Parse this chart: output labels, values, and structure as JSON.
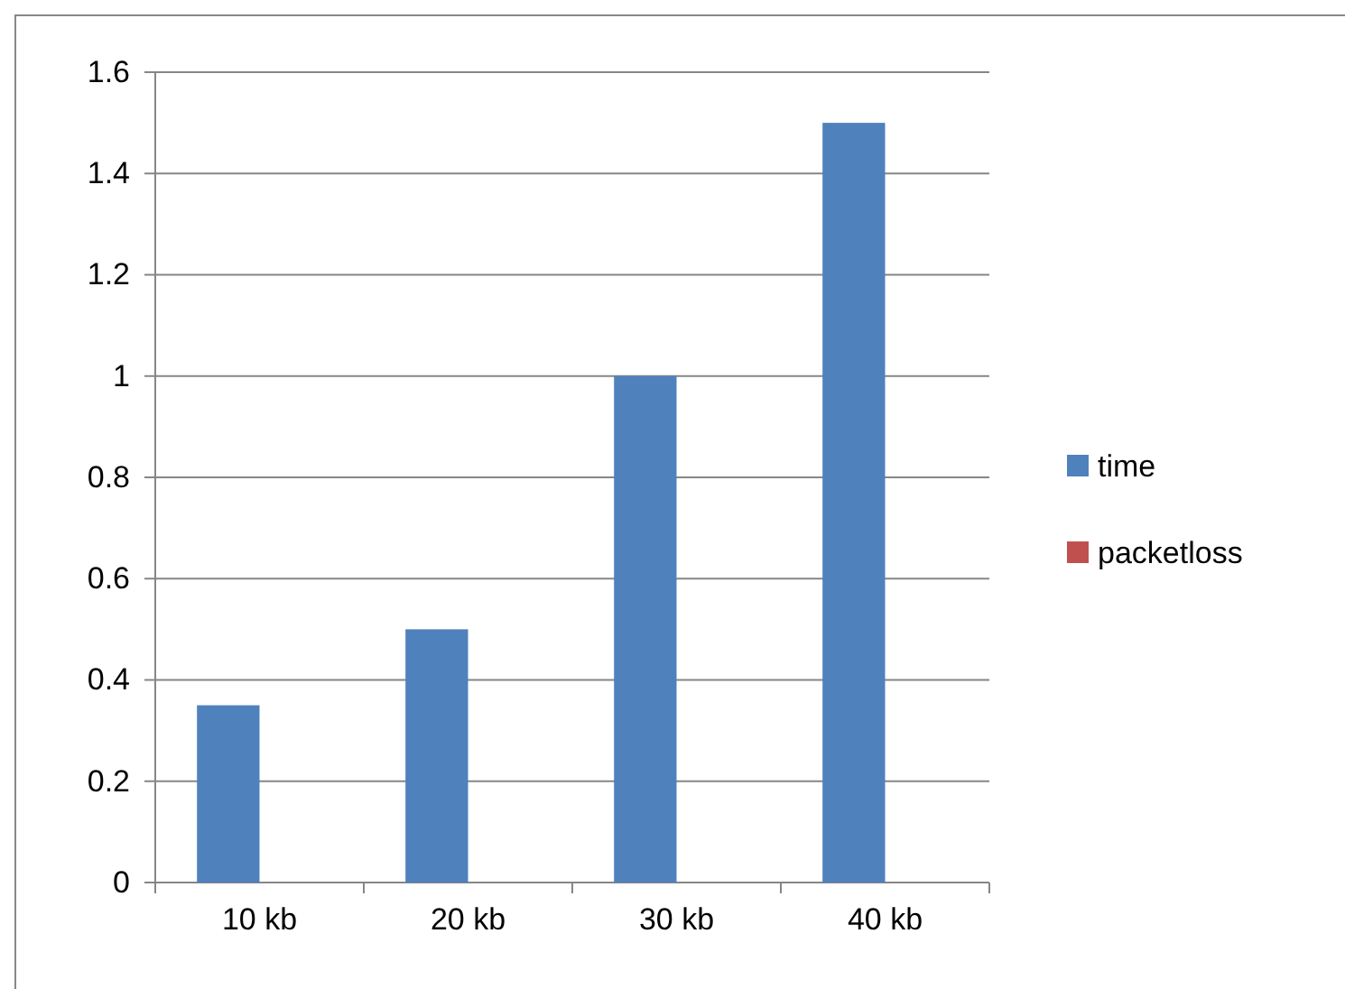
{
  "chart_data": {
    "type": "bar",
    "categories": [
      "10 kb",
      "20 kb",
      "30 kb",
      "40 kb"
    ],
    "series": [
      {
        "name": "time",
        "color": "#4f81bd",
        "values": [
          0.35,
          0.5,
          1.0,
          1.5
        ]
      },
      {
        "name": "packetloss",
        "color": "#c0504d",
        "values": [
          0,
          0,
          0,
          0
        ]
      }
    ],
    "ylim": [
      0,
      1.6
    ],
    "yticks": [
      0,
      {
        "value": 0.2,
        "label": "0.2"
      },
      {
        "value": 0.4,
        "label": "0.4"
      },
      {
        "value": 0.6,
        "label": "0.6"
      },
      {
        "value": 0.8,
        "label": "0.8"
      },
      1,
      {
        "value": 1.2,
        "label": "1.2"
      },
      {
        "value": 1.4,
        "label": "1.4"
      },
      {
        "value": 1.6,
        "label": "1.6"
      }
    ],
    "grid": "y",
    "legend": "right"
  }
}
